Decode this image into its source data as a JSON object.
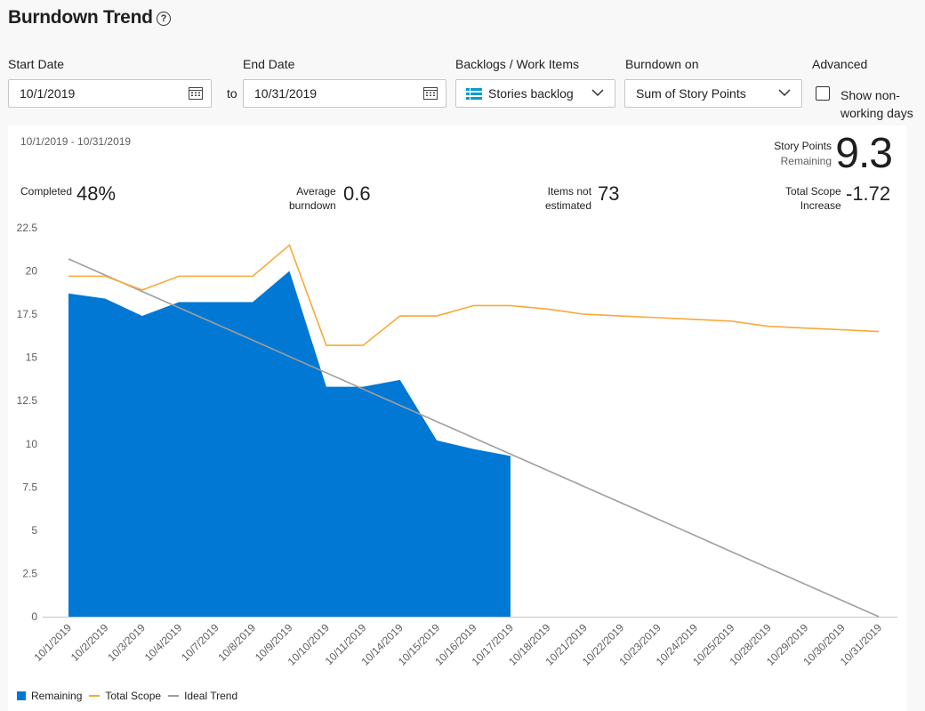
{
  "header": {
    "title": "Burndown Trend",
    "help_glyph": "?"
  },
  "filters": {
    "start_date_label": "Start Date",
    "start_date_value": "10/1/2019",
    "to_label": "to",
    "end_date_label": "End Date",
    "end_date_value": "10/31/2019",
    "backlog_label": "Backlogs / Work Items",
    "backlog_value": "Stories backlog",
    "burndown_label": "Burndown on",
    "burndown_value": "Sum of Story Points",
    "advanced_label": "Advanced",
    "nonworking_label": "Show non-working days",
    "nonworking_checked": false
  },
  "summary": {
    "date_range": "10/1/2019 - 10/31/2019",
    "story_points_label": "Story Points",
    "story_points_sub": "Remaining",
    "story_points_value": "9.3",
    "completed_label": "Completed",
    "completed_value": "48%",
    "avg_label_1": "Average",
    "avg_label_2": "burndown",
    "avg_value": "0.6",
    "items_label_1": "Items not",
    "items_label_2": "estimated",
    "items_value": "73",
    "scope_label_1": "Total Scope",
    "scope_label_2": "Increase",
    "scope_value": "-1.72"
  },
  "colors": {
    "remaining": "#0078d4",
    "total_scope": "#f7a93a",
    "ideal": "#a19f9d"
  },
  "chart_data": {
    "type": "area",
    "categories": [
      "10/1/2019",
      "10/2/2019",
      "10/3/2019",
      "10/4/2019",
      "10/7/2019",
      "10/8/2019",
      "10/9/2019",
      "10/10/2019",
      "10/11/2019",
      "10/14/2019",
      "10/15/2019",
      "10/16/2019",
      "10/17/2019",
      "10/18/2019",
      "10/21/2019",
      "10/22/2019",
      "10/23/2019",
      "10/24/2019",
      "10/25/2019",
      "10/28/2019",
      "10/29/2019",
      "10/30/2019",
      "10/31/2019"
    ],
    "ylim": [
      0,
      22.5
    ],
    "yticks": [
      0,
      2.5,
      5,
      7.5,
      10,
      12.5,
      15,
      17.5,
      20,
      22.5
    ],
    "series": [
      {
        "name": "Remaining",
        "type": "area",
        "values": [
          18.7,
          18.4,
          17.4,
          18.2,
          18.2,
          18.2,
          20.0,
          13.3,
          13.3,
          13.7,
          10.2,
          9.7,
          9.3,
          null,
          null,
          null,
          null,
          null,
          null,
          null,
          null,
          null,
          null
        ]
      },
      {
        "name": "Total Scope",
        "type": "line",
        "values": [
          19.7,
          19.7,
          18.9,
          19.7,
          19.7,
          19.7,
          21.5,
          15.7,
          15.7,
          17.4,
          17.4,
          18.0,
          18.0,
          17.8,
          17.5,
          17.4,
          17.3,
          17.2,
          17.1,
          16.8,
          16.7,
          16.6,
          16.5
        ]
      },
      {
        "name": "Ideal Trend",
        "type": "line",
        "values": [
          20.7,
          19.76,
          18.82,
          17.88,
          16.94,
          16.0,
          15.05,
          14.11,
          13.17,
          12.23,
          11.29,
          10.35,
          9.41,
          8.47,
          7.53,
          6.59,
          5.65,
          4.71,
          3.76,
          2.82,
          1.88,
          0.94,
          0
        ]
      }
    ],
    "legend": "bottom-left",
    "grid": false
  }
}
